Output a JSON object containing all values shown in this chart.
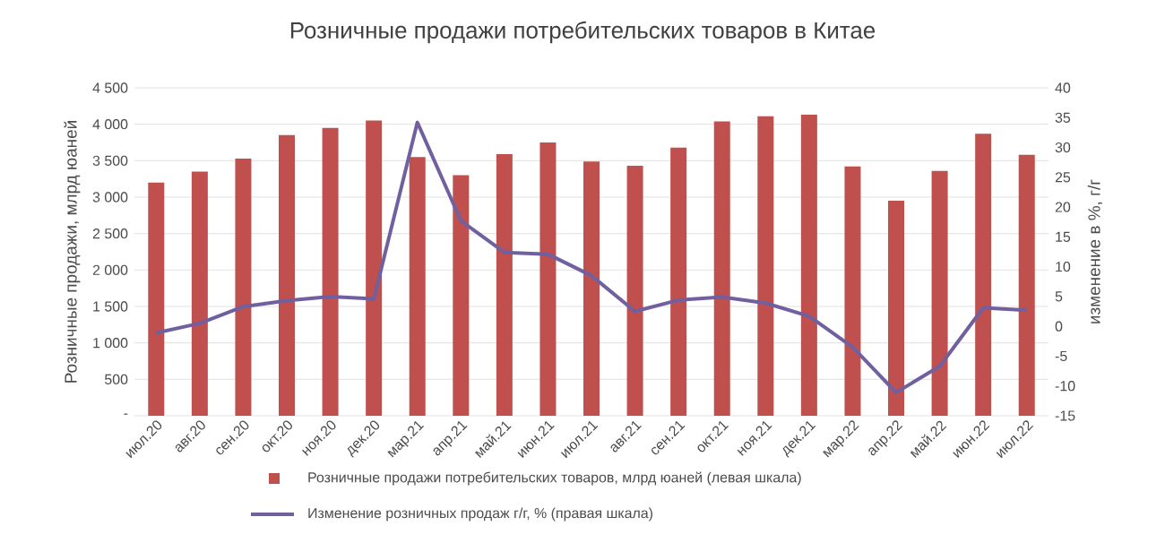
{
  "chart_data": {
    "type": "bar",
    "title": "Розничные продажи потребительских товаров в Китае",
    "ylabel": "Розничные продажи, млрд юаней",
    "y2label": "изменение в %, г/г",
    "categories": [
      "июл.20",
      "авг.20",
      "сен.20",
      "окт.20",
      "ноя.20",
      "дек.20",
      "мар.21",
      "апр.21",
      "май.21",
      "июн.21",
      "июл.21",
      "авг.21",
      "сен.21",
      "окт.21",
      "ноя.21",
      "дек.21",
      "мар.22",
      "апр.22",
      "май.22",
      "июн.22",
      "июл.22"
    ],
    "series": [
      {
        "name": "Розничные продажи потребительских товаров, млрд юаней (левая шкала)",
        "color": "#c0504d",
        "values": [
          3200,
          3350,
          3530,
          3850,
          3950,
          4050,
          3550,
          3300,
          3590,
          3750,
          3490,
          3430,
          3680,
          4040,
          4110,
          4130,
          3420,
          2950,
          3360,
          3870,
          3580
        ]
      },
      {
        "name": "Изменение розничных продаж г/г, % (правая шкала)",
        "type": "line",
        "axis": "y2",
        "color": "#7060a0",
        "values": [
          -1.1,
          0.5,
          3.3,
          4.3,
          5.0,
          4.6,
          34.2,
          17.7,
          12.4,
          12.1,
          8.5,
          2.5,
          4.4,
          4.9,
          3.9,
          1.7,
          -3.5,
          -11.1,
          -6.7,
          3.1,
          2.7
        ]
      }
    ],
    "ylim": [
      0,
      4500
    ],
    "yticks": [
      {
        "value": 0,
        "label": "-"
      },
      500,
      {
        "value": 1000,
        "label": "1 000"
      },
      {
        "value": 1500,
        "label": "1 500"
      },
      {
        "value": 2000,
        "label": "2 000"
      },
      {
        "value": 2500,
        "label": "2 500"
      },
      {
        "value": 3000,
        "label": "3 000"
      },
      {
        "value": 3500,
        "label": "3 500"
      },
      {
        "value": 4000,
        "label": "4 000"
      },
      {
        "value": 4500,
        "label": "4 500"
      }
    ],
    "y2lim": [
      -15,
      40
    ],
    "y2ticks": [
      -15,
      -10,
      -5,
      0,
      5,
      10,
      15,
      20,
      25,
      30,
      35,
      40
    ],
    "grid": "y",
    "legend": "bottom"
  }
}
